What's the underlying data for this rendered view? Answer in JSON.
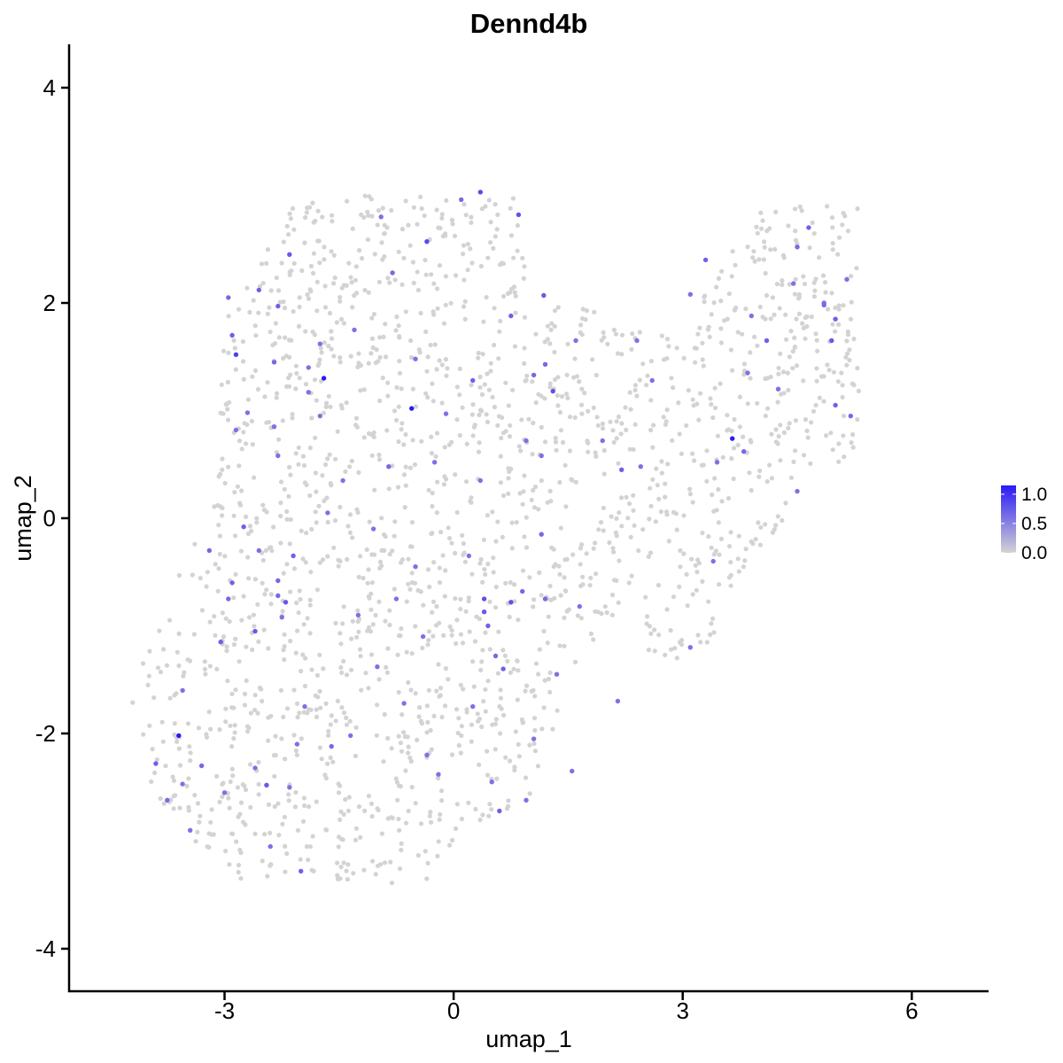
{
  "chart_data": {
    "type": "scatter",
    "title": "Dennd4b",
    "xlabel": "umap_1",
    "ylabel": "umap_2",
    "xlim": [
      -5.5,
      6.5
    ],
    "ylim": [
      -4.2,
      4.4
    ],
    "x_ticks": [
      {
        "value": -3,
        "label": "-3"
      },
      {
        "value": 0,
        "label": "0"
      },
      {
        "value": 3,
        "label": "3"
      },
      {
        "value": 6,
        "label": "6"
      }
    ],
    "y_ticks": [
      {
        "value": -4,
        "label": "-4"
      },
      {
        "value": -2,
        "label": "-2"
      },
      {
        "value": 0,
        "label": "0"
      },
      {
        "value": 2,
        "label": "2"
      },
      {
        "value": 4,
        "label": "4"
      }
    ],
    "grid": false,
    "legend_position": "right",
    "color_scale": {
      "low_color": "#d3d3d3",
      "high_color": "#2a1af5",
      "min": 0.0,
      "max": 1.15,
      "ticks": [
        {
          "value": 0.0,
          "label": "0.0"
        },
        {
          "value": 0.5,
          "label": "0.5"
        },
        {
          "value": 1.0,
          "label": "1.0"
        }
      ]
    },
    "expressing_points": [
      {
        "x": -1.7,
        "y": 1.3,
        "value": 1.15
      },
      {
        "x": -0.55,
        "y": 1.02,
        "value": 1.15
      },
      {
        "x": 3.65,
        "y": 0.74,
        "value": 1.15
      },
      {
        "x": -3.6,
        "y": -2.02,
        "value": 1.15
      },
      {
        "x": 0.35,
        "y": 3.03,
        "value": 0.85
      },
      {
        "x": 0.85,
        "y": 2.82,
        "value": 0.8
      },
      {
        "x": -0.35,
        "y": 2.57,
        "value": 0.85
      },
      {
        "x": -2.15,
        "y": 2.45,
        "value": 0.75
      },
      {
        "x": -2.55,
        "y": 2.12,
        "value": 0.7
      },
      {
        "x": -2.95,
        "y": 2.05,
        "value": 0.65
      },
      {
        "x": -2.3,
        "y": 1.97,
        "value": 0.7
      },
      {
        "x": -2.9,
        "y": 1.7,
        "value": 0.7
      },
      {
        "x": -2.85,
        "y": 1.52,
        "value": 0.9
      },
      {
        "x": -2.35,
        "y": 1.45,
        "value": 0.65
      },
      {
        "x": -1.9,
        "y": 1.4,
        "value": 0.6
      },
      {
        "x": -1.75,
        "y": 1.62,
        "value": 0.6
      },
      {
        "x": -1.3,
        "y": 1.75,
        "value": 0.6
      },
      {
        "x": -0.8,
        "y": 2.28,
        "value": 0.65
      },
      {
        "x": -0.95,
        "y": 2.8,
        "value": 0.6
      },
      {
        "x": 0.1,
        "y": 2.96,
        "value": 0.65
      },
      {
        "x": -0.5,
        "y": 1.48,
        "value": 0.6
      },
      {
        "x": 0.25,
        "y": 1.28,
        "value": 0.7
      },
      {
        "x": -0.1,
        "y": 0.97,
        "value": 0.6
      },
      {
        "x": 1.05,
        "y": 1.33,
        "value": 0.65
      },
      {
        "x": 1.3,
        "y": 1.18,
        "value": 0.8
      },
      {
        "x": 0.95,
        "y": 0.72,
        "value": 0.6
      },
      {
        "x": 1.15,
        "y": 0.58,
        "value": 0.6
      },
      {
        "x": 1.6,
        "y": 1.65,
        "value": 0.6
      },
      {
        "x": 1.2,
        "y": 1.43,
        "value": 0.65
      },
      {
        "x": 1.18,
        "y": 2.07,
        "value": 0.75
      },
      {
        "x": 0.75,
        "y": 1.88,
        "value": 0.7
      },
      {
        "x": 2.2,
        "y": 0.45,
        "value": 0.7
      },
      {
        "x": 2.4,
        "y": 1.65,
        "value": 0.6
      },
      {
        "x": 3.3,
        "y": 2.4,
        "value": 0.7
      },
      {
        "x": 3.1,
        "y": 2.08,
        "value": 0.6
      },
      {
        "x": 3.45,
        "y": 0.52,
        "value": 0.6
      },
      {
        "x": 3.8,
        "y": 0.62,
        "value": 0.65
      },
      {
        "x": 3.9,
        "y": 1.88,
        "value": 0.6
      },
      {
        "x": 4.1,
        "y": 1.65,
        "value": 0.7
      },
      {
        "x": 4.5,
        "y": 2.52,
        "value": 0.65
      },
      {
        "x": 4.65,
        "y": 2.7,
        "value": 0.7
      },
      {
        "x": 4.85,
        "y": 1.98,
        "value": 0.65
      },
      {
        "x": 5.0,
        "y": 1.85,
        "value": 0.7
      },
      {
        "x": 4.95,
        "y": 1.65,
        "value": 0.75
      },
      {
        "x": 5.0,
        "y": 1.05,
        "value": 0.7
      },
      {
        "x": 5.2,
        "y": 0.95,
        "value": 0.65
      },
      {
        "x": 4.5,
        "y": 0.25,
        "value": 0.6
      },
      {
        "x": 3.4,
        "y": -0.4,
        "value": 0.6
      },
      {
        "x": 3.1,
        "y": -1.2,
        "value": 0.6
      },
      {
        "x": 2.15,
        "y": -1.7,
        "value": 0.6
      },
      {
        "x": 1.65,
        "y": -0.82,
        "value": 0.6
      },
      {
        "x": 1.35,
        "y": -1.45,
        "value": 0.6
      },
      {
        "x": 0.75,
        "y": -0.78,
        "value": 0.8
      },
      {
        "x": 0.9,
        "y": -0.68,
        "value": 0.65
      },
      {
        "x": 0.4,
        "y": -0.75,
        "value": 0.8
      },
      {
        "x": 0.4,
        "y": -0.87,
        "value": 0.75
      },
      {
        "x": 0.45,
        "y": -1.0,
        "value": 0.7
      },
      {
        "x": 1.2,
        "y": -0.75,
        "value": 0.65
      },
      {
        "x": 1.15,
        "y": -0.15,
        "value": 0.65
      },
      {
        "x": -0.4,
        "y": -1.1,
        "value": 0.6
      },
      {
        "x": -0.75,
        "y": -0.75,
        "value": 0.6
      },
      {
        "x": 0.55,
        "y": -1.28,
        "value": 0.65
      },
      {
        "x": 0.65,
        "y": -1.4,
        "value": 0.7
      },
      {
        "x": 0.5,
        "y": -2.45,
        "value": 0.6
      },
      {
        "x": 0.6,
        "y": -2.72,
        "value": 0.7
      },
      {
        "x": 0.25,
        "y": -1.75,
        "value": 0.6
      },
      {
        "x": -0.35,
        "y": -2.2,
        "value": 0.6
      },
      {
        "x": -0.2,
        "y": -2.38,
        "value": 0.6
      },
      {
        "x": -1.35,
        "y": -2.02,
        "value": 0.6
      },
      {
        "x": -1.6,
        "y": -2.12,
        "value": 0.65
      },
      {
        "x": -1.95,
        "y": -1.75,
        "value": 0.6
      },
      {
        "x": -2.05,
        "y": -2.1,
        "value": 0.6
      },
      {
        "x": -2.3,
        "y": -0.58,
        "value": 0.65
      },
      {
        "x": -2.2,
        "y": -0.78,
        "value": 0.75
      },
      {
        "x": -2.25,
        "y": -0.92,
        "value": 0.6
      },
      {
        "x": -2.55,
        "y": -0.3,
        "value": 0.6
      },
      {
        "x": -2.1,
        "y": -0.35,
        "value": 0.7
      },
      {
        "x": -2.3,
        "y": -0.72,
        "value": 0.65
      },
      {
        "x": -2.9,
        "y": -0.6,
        "value": 0.7
      },
      {
        "x": -2.95,
        "y": -0.75,
        "value": 0.65
      },
      {
        "x": -2.75,
        "y": -0.08,
        "value": 0.7
      },
      {
        "x": -3.2,
        "y": -0.3,
        "value": 0.65
      },
      {
        "x": -3.05,
        "y": -1.15,
        "value": 0.7
      },
      {
        "x": -2.6,
        "y": -1.05,
        "value": 0.75
      },
      {
        "x": -3.55,
        "y": -1.6,
        "value": 0.6
      },
      {
        "x": -3.9,
        "y": -2.28,
        "value": 0.7
      },
      {
        "x": -3.75,
        "y": -2.62,
        "value": 0.65
      },
      {
        "x": -3.3,
        "y": -2.3,
        "value": 0.65
      },
      {
        "x": -3.0,
        "y": -2.55,
        "value": 0.6
      },
      {
        "x": -2.6,
        "y": -2.32,
        "value": 0.6
      },
      {
        "x": -2.45,
        "y": -2.48,
        "value": 0.75
      },
      {
        "x": -2.15,
        "y": -2.5,
        "value": 0.6
      },
      {
        "x": -2.0,
        "y": -3.28,
        "value": 0.7
      },
      {
        "x": -2.4,
        "y": -3.05,
        "value": 0.6
      },
      {
        "x": -3.45,
        "y": -2.9,
        "value": 0.6
      },
      {
        "x": -3.55,
        "y": -2.47,
        "value": 0.6
      },
      {
        "x": -1.45,
        "y": 0.35,
        "value": 0.6
      },
      {
        "x": -1.65,
        "y": 0.05,
        "value": 0.6
      },
      {
        "x": -0.85,
        "y": 0.48,
        "value": 0.65
      },
      {
        "x": -0.25,
        "y": 0.52,
        "value": 0.6
      },
      {
        "x": 0.2,
        "y": -0.35,
        "value": 0.6
      },
      {
        "x": 0.35,
        "y": 0.35,
        "value": 0.6
      },
      {
        "x": -0.5,
        "y": -0.45,
        "value": 0.6
      },
      {
        "x": -1.05,
        "y": -0.1,
        "value": 0.6
      },
      {
        "x": -2.35,
        "y": 0.85,
        "value": 0.6
      },
      {
        "x": -2.85,
        "y": 0.82,
        "value": 0.6
      },
      {
        "x": -2.7,
        "y": 0.98,
        "value": 0.6
      },
      {
        "x": -2.3,
        "y": 0.58,
        "value": 0.6
      },
      {
        "x": -1.9,
        "y": 1.17,
        "value": 0.6
      },
      {
        "x": -1.75,
        "y": 0.95,
        "value": 0.6
      },
      {
        "x": 2.45,
        "y": 0.48,
        "value": 0.6
      },
      {
        "x": 2.6,
        "y": 1.28,
        "value": 0.6
      },
      {
        "x": 1.95,
        "y": 0.72,
        "value": 0.6
      },
      {
        "x": 4.45,
        "y": 2.18,
        "value": 0.6
      },
      {
        "x": 4.85,
        "y": 2.0,
        "value": 0.6
      },
      {
        "x": 5.15,
        "y": 2.22,
        "value": 0.6
      },
      {
        "x": 4.25,
        "y": 1.2,
        "value": 0.6
      },
      {
        "x": 3.85,
        "y": 1.35,
        "value": 0.6
      },
      {
        "x": 1.55,
        "y": -2.35,
        "value": 0.6
      },
      {
        "x": 1.05,
        "y": -2.05,
        "value": 0.6
      },
      {
        "x": 0.95,
        "y": -2.62,
        "value": 0.6
      },
      {
        "x": -0.65,
        "y": -1.72,
        "value": 0.6
      },
      {
        "x": -1.0,
        "y": -1.38,
        "value": 0.6
      },
      {
        "x": -1.25,
        "y": -0.9,
        "value": 0.6
      }
    ]
  }
}
